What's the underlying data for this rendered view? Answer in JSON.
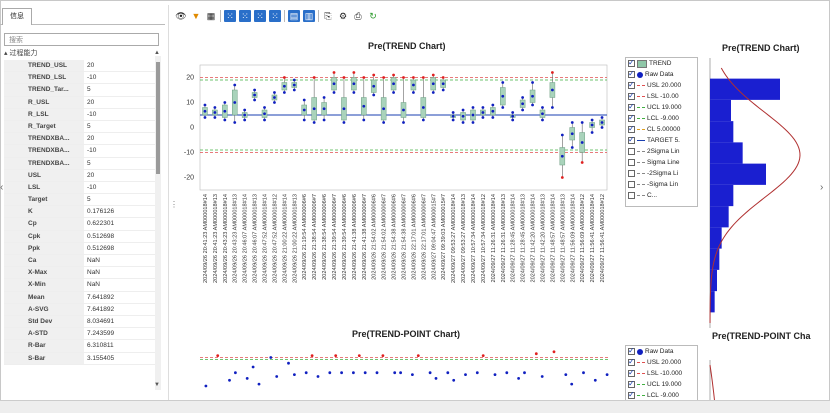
{
  "panel": {
    "tab_label": "信息",
    "search_placeholder": "搜索",
    "group_label": "过程能力",
    "properties": [
      {
        "key": "TREND_USL",
        "value": "20"
      },
      {
        "key": "TREND_LSL",
        "value": "-10"
      },
      {
        "key": "TREND_Tar...",
        "value": "5"
      },
      {
        "key": "R_USL",
        "value": "20"
      },
      {
        "key": "R_LSL",
        "value": "-10"
      },
      {
        "key": "R_Target",
        "value": "5"
      },
      {
        "key": "TRENDXBA...",
        "value": "20"
      },
      {
        "key": "TRENDXBA...",
        "value": "-10"
      },
      {
        "key": "TRENDXBA...",
        "value": "5"
      },
      {
        "key": "USL",
        "value": "20"
      },
      {
        "key": "LSL",
        "value": "-10"
      },
      {
        "key": "Target",
        "value": "5"
      },
      {
        "key": "K",
        "value": "0.176126"
      },
      {
        "key": "Cp",
        "value": "0.622301"
      },
      {
        "key": "Cpk",
        "value": "0.512698"
      },
      {
        "key": "Ppk",
        "value": "0.512698"
      },
      {
        "key": "Ca",
        "value": "NaN"
      },
      {
        "key": "X-Max",
        "value": "NaN"
      },
      {
        "key": "X-Min",
        "value": "NaN"
      },
      {
        "key": "Mean",
        "value": "7.641892"
      },
      {
        "key": "A-SVG",
        "value": "7.641892"
      },
      {
        "key": "Std Dev",
        "value": "8.034691"
      },
      {
        "key": "A-STD",
        "value": "7.243599"
      },
      {
        "key": "R-Bar",
        "value": "6.310811"
      },
      {
        "key": "S-Bar",
        "value": "3.155405"
      }
    ]
  },
  "toolbar": {
    "icons": [
      "eye-icon",
      "filter-icon",
      "table-icon",
      "sep",
      "connect-icon",
      "connect-icon-2",
      "connect-icon-3",
      "connect-icon-4",
      "sep",
      "layout-icon",
      "bar-chart-icon",
      "sep",
      "export-icon",
      "chart-settings-icon",
      "print-icon",
      "refresh-icon"
    ]
  },
  "trend_chart": {
    "title": "Pre(TREND Chart)",
    "y_ticks": [
      "20",
      "10",
      "0",
      "-10",
      "-20"
    ],
    "legend": [
      {
        "label": "TREND",
        "checked": true,
        "color": "#8fc7a8",
        "kind": "box"
      },
      {
        "label": "Raw Data",
        "checked": true,
        "color": "#1020c0",
        "kind": "dot"
      },
      {
        "label": "USL 20.000",
        "checked": true,
        "color": "#e05050",
        "kind": "dash"
      },
      {
        "label": "LSL -10.00",
        "checked": true,
        "color": "#e05050",
        "kind": "dash"
      },
      {
        "label": "UCL 19.000",
        "checked": true,
        "color": "#40b040",
        "kind": "dash"
      },
      {
        "label": "LCL -9.000",
        "checked": true,
        "color": "#40b040",
        "kind": "dash"
      },
      {
        "label": "CL 5.00000",
        "checked": true,
        "color": "#e0a020",
        "kind": "dash"
      },
      {
        "label": "TARGET 5.",
        "checked": true,
        "color": "#1a3fb0",
        "kind": "line"
      },
      {
        "label": "2Sigma Lin",
        "checked": false,
        "color": "#888",
        "kind": "dash"
      },
      {
        "label": "Sigma Line",
        "checked": false,
        "color": "#888",
        "kind": "dash"
      },
      {
        "label": "-2Sigma Li",
        "checked": false,
        "color": "#888",
        "kind": "dash"
      },
      {
        "label": "-Sigma Lin",
        "checked": false,
        "color": "#888",
        "kind": "dash"
      },
      {
        "label": "C...",
        "checked": false,
        "color": "#888",
        "kind": "dash"
      }
    ],
    "x_labels": [
      "2024/09/26 20:41:23 AM000018#14",
      "2024/09/26 20:41:23 AM000018#13",
      "2024/09/26 20:43:23 AM000018#14",
      "2024/09/26 20:43:23 AM000018#13",
      "2024/09/26 20:46:07 AM000018#14",
      "2024/09/26 20:46:07 AM000018#13",
      "2024/09/26 20:47:52 AM000018#14",
      "2024/09/26 20:47:52 AM000018#12",
      "2024/09/26 21:00:22 AM000018#14",
      "2024/09/26 21:00:22 AM000018#13",
      "2024/09/26 21:19:54 AM000006#6",
      "2024/09/26 21:38:54 AM000006#7",
      "2024/09/26 21:38:54 AM000006#6",
      "2024/09/26 21:39:54 AM000006#7",
      "2024/09/26 21:39:54 AM000006#6",
      "2024/09/26 21:41:38 AM000006#6",
      "2024/09/26 21:41:38 AM000006#7",
      "2024/09/26 21:54:02 AM000006#6",
      "2024/09/26 21:54:02 AM000006#7",
      "2024/09/26 21:54:38 AM000006#6",
      "2024/09/26 21:54:38 AM000006#7",
      "2024/09/26 22:17:01 AM000006#6",
      "2024/09/26 22:17:01 AM000006#7",
      "2024/09/27 09:04:47 AM000015#7",
      "2024/09/27 09:39:03 AM000015#7",
      "2024/09/27 09:53:27 AM000018#14",
      "2024/09/27 09:53:27 AM000018#13",
      "2024/09/27 10:57:34 AM000018#14",
      "2024/09/27 10:57:34 AM000018#12",
      "2024/09/27 11:26:31 AM000018#14",
      "2024/09/27 11:26:31 AM000018#13",
      "2024/09/27 11:28:45 AM000018#14",
      "2024/09/27 11:28:45 AM000018#13",
      "2024/09/27 11:42:20 AM000018#14",
      "2024/09/27 11:42:20 AM000018#13",
      "2024/09/27 11:48:57 AM000018#14",
      "2024/09/27 11:48:57 AM000018#13",
      "2024/09/27 11:56:09 AM000018#14",
      "2024/09/27 11:56:09 AM000018#12",
      "2024/09/27 11:56:41 AM000018#14",
      "2024/09/27 11:56:41 AM000018#12"
    ]
  },
  "hist_chart": {
    "title": "Pre(TREND Chart)"
  },
  "point_chart": {
    "title": "Pre(TREND-POINT Chart)",
    "legend": [
      {
        "label": "Raw Data",
        "checked": true,
        "color": "#1020c0",
        "kind": "dot"
      },
      {
        "label": "USL 20.000",
        "checked": true,
        "color": "#e05050",
        "kind": "dash"
      },
      {
        "label": "LSL -10.000",
        "checked": true,
        "color": "#e05050",
        "kind": "dash"
      },
      {
        "label": "UCL 19.000",
        "checked": true,
        "color": "#40b040",
        "kind": "dash"
      },
      {
        "label": "LCL -9.000",
        "checked": true,
        "color": "#40b040",
        "kind": "dash"
      }
    ]
  },
  "point_hist": {
    "title": "Pre(TREND-POINT Cha"
  },
  "chart_data": [
    {
      "type": "box",
      "title": "Pre(TREND Chart)",
      "ylim": [
        -25,
        25
      ],
      "yticks": [
        20,
        10,
        0,
        -10,
        -20
      ],
      "usl": 20,
      "lsl": -10,
      "ucl": 19,
      "lcl": -9,
      "cl": 5,
      "target": 5,
      "boxes": [
        {
          "q1": 5,
          "q3": 8,
          "min": 4,
          "max": 9
        },
        {
          "q1": 5,
          "q3": 7,
          "min": 4,
          "max": 8
        },
        {
          "q1": 4,
          "q3": 9,
          "min": 3,
          "max": 10
        },
        {
          "q1": 5,
          "q3": 15,
          "min": 2,
          "max": 17
        },
        {
          "q1": 4,
          "q3": 6,
          "min": 3,
          "max": 7
        },
        {
          "q1": 12,
          "q3": 14,
          "min": 11,
          "max": 15
        },
        {
          "q1": 4,
          "q3": 7,
          "min": 3,
          "max": 8
        },
        {
          "q1": 11,
          "q3": 13,
          "min": 10,
          "max": 14
        },
        {
          "q1": 15,
          "q3": 18,
          "min": 14,
          "max": 20
        },
        {
          "q1": 16,
          "q3": 18,
          "min": 15,
          "max": 19
        },
        {
          "q1": 5,
          "q3": 9,
          "min": 3,
          "max": 11
        },
        {
          "q1": 3,
          "q3": 12,
          "min": 2,
          "max": 20
        },
        {
          "q1": 5,
          "q3": 10,
          "min": 3,
          "max": 12
        },
        {
          "q1": 15,
          "q3": 20,
          "min": 14,
          "max": 22
        },
        {
          "q1": 3,
          "q3": 12,
          "min": 2,
          "max": 20
        },
        {
          "q1": 15,
          "q3": 20,
          "min": 14,
          "max": 22
        },
        {
          "q1": 5,
          "q3": 12,
          "min": 3,
          "max": 20
        },
        {
          "q1": 14,
          "q3": 19,
          "min": 13,
          "max": 21
        },
        {
          "q1": 3,
          "q3": 12,
          "min": 2,
          "max": 20
        },
        {
          "q1": 15,
          "q3": 20,
          "min": 14,
          "max": 21
        },
        {
          "q1": 4,
          "q3": 10,
          "min": 2,
          "max": 20
        },
        {
          "q1": 15,
          "q3": 19,
          "min": 14,
          "max": 20
        },
        {
          "q1": 4,
          "q3": 12,
          "min": 3,
          "max": 20
        },
        {
          "q1": 15,
          "q3": 20,
          "min": 14,
          "max": 21
        },
        {
          "q1": 16,
          "q3": 19,
          "min": 15,
          "max": 20
        },
        {
          "q1": 4,
          "q3": 5,
          "min": 3,
          "max": 6
        },
        {
          "q1": 3,
          "q3": 6,
          "min": 2,
          "max": 7
        },
        {
          "q1": 3,
          "q3": 7,
          "min": 2,
          "max": 8
        },
        {
          "q1": 5,
          "q3": 7,
          "min": 4,
          "max": 8
        },
        {
          "q1": 5,
          "q3": 8,
          "min": 4,
          "max": 9
        },
        {
          "q1": 9,
          "q3": 16,
          "min": 8,
          "max": 18
        },
        {
          "q1": 4,
          "q3": 5,
          "min": 3,
          "max": 6
        },
        {
          "q1": 8,
          "q3": 11,
          "min": 7,
          "max": 12
        },
        {
          "q1": 10,
          "q3": 15,
          "min": 9,
          "max": 18
        },
        {
          "q1": 4,
          "q3": 7,
          "min": 3,
          "max": 8
        },
        {
          "q1": 12,
          "q3": 18,
          "min": 8,
          "max": 22
        },
        {
          "q1": -15,
          "q3": -8,
          "min": -20,
          "max": -3
        },
        {
          "q1": -5,
          "q3": 0,
          "min": -8,
          "max": 2
        },
        {
          "q1": -10,
          "q3": -2,
          "min": -14,
          "max": 2
        },
        {
          "q1": 0,
          "q3": 2,
          "min": -2,
          "max": 3
        },
        {
          "q1": 1,
          "q3": 3,
          "min": 0,
          "max": 4
        }
      ]
    },
    {
      "type": "histogram",
      "title": "Pre(TREND Chart)",
      "bins": [
        {
          "from": -22,
          "to": -18,
          "count": 2
        },
        {
          "from": -18,
          "to": -14,
          "count": 3
        },
        {
          "from": -14,
          "to": -10,
          "count": 4
        },
        {
          "from": -10,
          "to": -6,
          "count": 5
        },
        {
          "from": -6,
          "to": -2,
          "count": 8
        },
        {
          "from": -2,
          "to": 2,
          "count": 10
        },
        {
          "from": 2,
          "to": 6,
          "count": 24
        },
        {
          "from": 6,
          "to": 10,
          "count": 14
        },
        {
          "from": 10,
          "to": 14,
          "count": 10
        },
        {
          "from": 14,
          "to": 18,
          "count": 9
        },
        {
          "from": 18,
          "to": 22,
          "count": 30
        }
      ]
    },
    {
      "type": "scatter",
      "title": "Pre(TREND-POINT Chart)",
      "usl": 20,
      "ucl": 19,
      "points": [
        {
          "x": 1,
          "y": 5
        },
        {
          "x": 3,
          "y": 21
        },
        {
          "x": 5,
          "y": 8
        },
        {
          "x": 6,
          "y": 12
        },
        {
          "x": 8,
          "y": 9
        },
        {
          "x": 9,
          "y": 15
        },
        {
          "x": 10,
          "y": 6
        },
        {
          "x": 12,
          "y": 20
        },
        {
          "x": 13,
          "y": 10
        },
        {
          "x": 15,
          "y": 17
        },
        {
          "x": 16,
          "y": 11
        },
        {
          "x": 18,
          "y": 12
        },
        {
          "x": 19,
          "y": 21
        },
        {
          "x": 20,
          "y": 10
        },
        {
          "x": 22,
          "y": 12
        },
        {
          "x": 23,
          "y": 21
        },
        {
          "x": 24,
          "y": 12
        },
        {
          "x": 26,
          "y": 12
        },
        {
          "x": 27,
          "y": 21
        },
        {
          "x": 28,
          "y": 12
        },
        {
          "x": 30,
          "y": 12
        },
        {
          "x": 31,
          "y": 21
        },
        {
          "x": 33,
          "y": 12
        },
        {
          "x": 34,
          "y": 12
        },
        {
          "x": 36,
          "y": 11
        },
        {
          "x": 37,
          "y": 21
        },
        {
          "x": 39,
          "y": 12
        },
        {
          "x": 40,
          "y": 9
        },
        {
          "x": 42,
          "y": 12
        },
        {
          "x": 43,
          "y": 8
        },
        {
          "x": 45,
          "y": 11
        },
        {
          "x": 47,
          "y": 12
        },
        {
          "x": 48,
          "y": 21
        },
        {
          "x": 50,
          "y": 11
        },
        {
          "x": 52,
          "y": 12
        },
        {
          "x": 54,
          "y": 9
        },
        {
          "x": 55,
          "y": 12
        },
        {
          "x": 57,
          "y": 22
        },
        {
          "x": 58,
          "y": 10
        },
        {
          "x": 60,
          "y": 23
        },
        {
          "x": 62,
          "y": 11
        },
        {
          "x": 63,
          "y": 6
        },
        {
          "x": 65,
          "y": 12
        },
        {
          "x": 67,
          "y": 8
        },
        {
          "x": 69,
          "y": 11
        }
      ]
    }
  ]
}
